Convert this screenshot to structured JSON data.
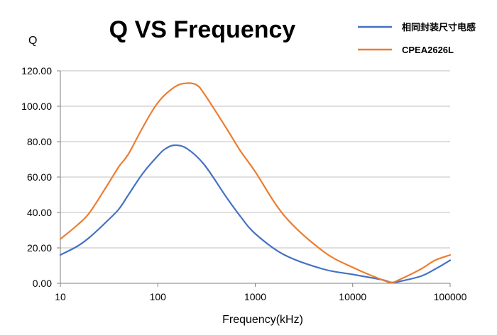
{
  "chart_data": {
    "type": "line",
    "title": "Q VS Frequency",
    "xlabel": "Frequency(kHz)",
    "ylabel": "Q",
    "xscale": "log",
    "xlim": [
      10,
      100000
    ],
    "ylim": [
      0,
      120
    ],
    "x_tick_labels": [
      "10",
      "100",
      "1000",
      "10000",
      "100000"
    ],
    "y_tick_labels": [
      "0.00",
      "20.00",
      "40.00",
      "60.00",
      "80.00",
      "100.00",
      "120.00"
    ],
    "grid": "horizontal",
    "legend_position": "top-right",
    "series": [
      {
        "name": "相同封装尺寸电感",
        "color": "#4472C4",
        "x": [
          10,
          15,
          20,
          30,
          40,
          50,
          70,
          100,
          120,
          150,
          200,
          300,
          500,
          700,
          1000,
          2000,
          5000,
          10000,
          20000,
          25000,
          30000,
          50000,
          70000,
          100000
        ],
        "y": [
          16,
          21,
          26,
          35,
          42,
          50,
          62,
          72,
          76,
          78,
          76,
          67,
          49,
          38,
          28,
          16,
          8,
          5,
          2,
          0.5,
          1,
          4,
          8,
          13
        ]
      },
      {
        "name": "CPEA2626L",
        "color": "#ED7D31",
        "x": [
          10,
          15,
          20,
          30,
          40,
          50,
          70,
          100,
          150,
          200,
          250,
          300,
          500,
          700,
          1000,
          2000,
          5000,
          10000,
          20000,
          25000,
          30000,
          50000,
          70000,
          100000
        ],
        "y": [
          25,
          33,
          40,
          55,
          66,
          73,
          88,
          102,
          111,
          113,
          112,
          107,
          88,
          75,
          63,
          38,
          18,
          9,
          2,
          0.5,
          2,
          8,
          13,
          16
        ]
      }
    ]
  }
}
